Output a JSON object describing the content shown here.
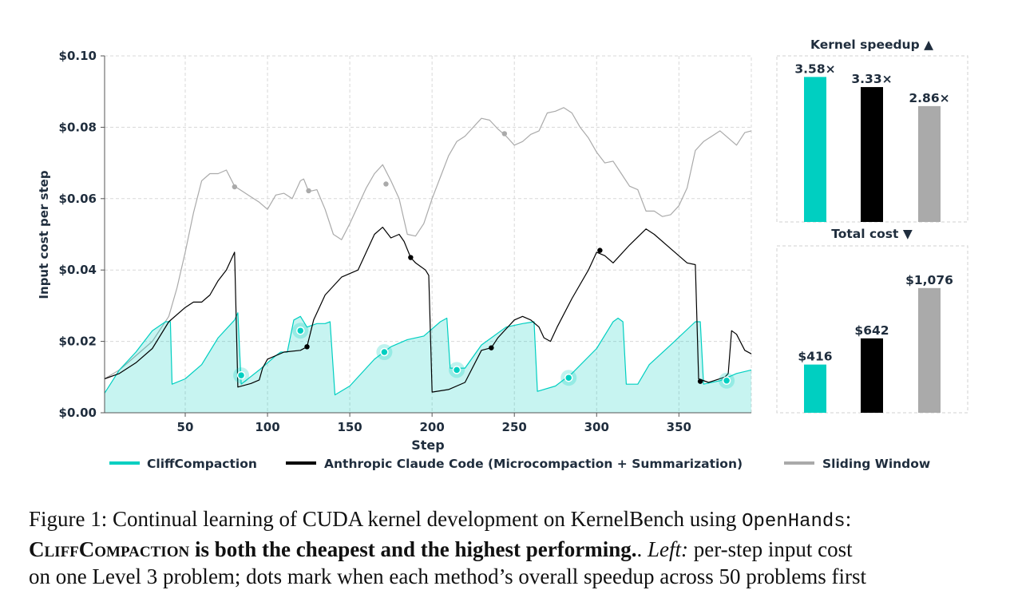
{
  "chart_data": [
    {
      "type": "line",
      "ylabel": "Input cost per step",
      "xlabel": "Step",
      "xlim": [
        1,
        394
      ],
      "ylim": [
        0,
        0.1
      ],
      "x_ticks": [
        50,
        100,
        150,
        200,
        250,
        300,
        350
      ],
      "y_ticks": [
        "$0.00",
        "$0.02",
        "$0.04",
        "$0.06",
        "$0.08",
        "$0.10"
      ],
      "grid": true,
      "legend_position": "bottom",
      "series": [
        {
          "name": "CliffCompaction",
          "color": "#00cfc1",
          "filled": true,
          "points": [
            [
              1,
              0.0055
            ],
            [
              10,
              0.012
            ],
            [
              20,
              0.017
            ],
            [
              30,
              0.023
            ],
            [
              38,
              0.0255
            ],
            [
              41,
              0.0255
            ],
            [
              42,
              0.008
            ],
            [
              50,
              0.0095
            ],
            [
              60,
              0.0135
            ],
            [
              70,
              0.021
            ],
            [
              80,
              0.026
            ],
            [
              82,
              0.028
            ],
            [
              84,
              0.008
            ],
            [
              95,
              0.012
            ],
            [
              105,
              0.016
            ],
            [
              108,
              0.017
            ],
            [
              112,
              0.017
            ],
            [
              116,
              0.026
            ],
            [
              120,
              0.027
            ],
            [
              124,
              0.024
            ],
            [
              130,
              0.025
            ],
            [
              135,
              0.025
            ],
            [
              138,
              0.0255
            ],
            [
              141,
              0.005
            ],
            [
              150,
              0.0075
            ],
            [
              165,
              0.015
            ],
            [
              175,
              0.0185
            ],
            [
              185,
              0.0205
            ],
            [
              195,
              0.0215
            ],
            [
              205,
              0.0255
            ],
            [
              209,
              0.0265
            ],
            [
              211,
              0.0125
            ],
            [
              220,
              0.0125
            ],
            [
              230,
              0.019
            ],
            [
              245,
              0.024
            ],
            [
              255,
              0.025
            ],
            [
              262,
              0.0255
            ],
            [
              264,
              0.006
            ],
            [
              275,
              0.0075
            ],
            [
              285,
              0.011
            ],
            [
              300,
              0.018
            ],
            [
              310,
              0.0255
            ],
            [
              313,
              0.0265
            ],
            [
              316,
              0.0255
            ],
            [
              318,
              0.008
            ],
            [
              325,
              0.008
            ],
            [
              332,
              0.0135
            ],
            [
              345,
              0.019
            ],
            [
              360,
              0.0255
            ],
            [
              363,
              0.0255
            ],
            [
              365,
              0.008
            ],
            [
              375,
              0.009
            ],
            [
              385,
              0.011
            ],
            [
              394,
              0.012
            ]
          ],
          "markers": [
            [
              84,
              0.0105
            ],
            [
              120,
              0.023
            ],
            [
              171,
              0.017
            ],
            [
              215,
              0.012
            ],
            [
              283,
              0.0098
            ],
            [
              379,
              0.009
            ]
          ]
        },
        {
          "name": "Anthropic Claude Code (Microcompaction + Summarization)",
          "color": "#000000",
          "filled": false,
          "points": [
            [
              1,
              0.0095
            ],
            [
              10,
              0.011
            ],
            [
              20,
              0.014
            ],
            [
              30,
              0.018
            ],
            [
              40,
              0.0255
            ],
            [
              50,
              0.0295
            ],
            [
              55,
              0.031
            ],
            [
              60,
              0.031
            ],
            [
              65,
              0.033
            ],
            [
              70,
              0.037
            ],
            [
              75,
              0.04
            ],
            [
              80,
              0.045
            ],
            [
              82,
              0.0072
            ],
            [
              90,
              0.0082
            ],
            [
              95,
              0.0092
            ],
            [
              97,
              0.0125
            ],
            [
              100,
              0.015
            ],
            [
              110,
              0.017
            ],
            [
              120,
              0.0175
            ],
            [
              124,
              0.0185
            ],
            [
              128,
              0.026
            ],
            [
              135,
              0.033
            ],
            [
              145,
              0.038
            ],
            [
              155,
              0.04
            ],
            [
              160,
              0.045
            ],
            [
              165,
              0.05
            ],
            [
              170,
              0.052
            ],
            [
              175,
              0.049
            ],
            [
              180,
              0.05
            ],
            [
              183,
              0.048
            ],
            [
              187,
              0.0435
            ],
            [
              190,
              0.042
            ],
            [
              193,
              0.041
            ],
            [
              196,
              0.04
            ],
            [
              198,
              0.0385
            ],
            [
              200,
              0.0058
            ],
            [
              210,
              0.0065
            ],
            [
              220,
              0.0085
            ],
            [
              230,
              0.0175
            ],
            [
              236,
              0.0182
            ],
            [
              240,
              0.021
            ],
            [
              250,
              0.026
            ],
            [
              255,
              0.027
            ],
            [
              260,
              0.026
            ],
            [
              265,
              0.024
            ],
            [
              268,
              0.021
            ],
            [
              272,
              0.02
            ],
            [
              276,
              0.024
            ],
            [
              285,
              0.032
            ],
            [
              295,
              0.04
            ],
            [
              300,
              0.045
            ],
            [
              305,
              0.044
            ],
            [
              310,
              0.042
            ],
            [
              320,
              0.047
            ],
            [
              330,
              0.0515
            ],
            [
              335,
              0.05
            ],
            [
              345,
              0.046
            ],
            [
              355,
              0.042
            ],
            [
              360,
              0.0415
            ],
            [
              362,
              0.0095
            ],
            [
              368,
              0.0085
            ],
            [
              378,
              0.01
            ],
            [
              380,
              0.011
            ],
            [
              382,
              0.023
            ],
            [
              385,
              0.022
            ],
            [
              390,
              0.0175
            ],
            [
              394,
              0.0165
            ]
          ],
          "markers": [
            [
              124,
              0.0185
            ],
            [
              187,
              0.0435
            ],
            [
              236,
              0.0182
            ],
            [
              302,
              0.0455
            ],
            [
              363,
              0.0088
            ]
          ]
        },
        {
          "name": "Sliding Window",
          "color": "#aaaaaa",
          "filled": false,
          "points": [
            [
              1,
              0.0095
            ],
            [
              10,
              0.012
            ],
            [
              20,
              0.016
            ],
            [
              30,
              0.02
            ],
            [
              40,
              0.027
            ],
            [
              45,
              0.035
            ],
            [
              50,
              0.045
            ],
            [
              55,
              0.056
            ],
            [
              60,
              0.065
            ],
            [
              65,
              0.067
            ],
            [
              70,
              0.067
            ],
            [
              75,
              0.068
            ],
            [
              80,
              0.0635
            ],
            [
              85,
              0.062
            ],
            [
              90,
              0.0605
            ],
            [
              95,
              0.059
            ],
            [
              100,
              0.057
            ],
            [
              105,
              0.061
            ],
            [
              110,
              0.0615
            ],
            [
              115,
              0.06
            ],
            [
              120,
              0.065
            ],
            [
              122,
              0.0655
            ],
            [
              125,
              0.062
            ],
            [
              130,
              0.0625
            ],
            [
              135,
              0.057
            ],
            [
              140,
              0.05
            ],
            [
              145,
              0.0485
            ],
            [
              150,
              0.053
            ],
            [
              155,
              0.058
            ],
            [
              160,
              0.063
            ],
            [
              165,
              0.067
            ],
            [
              170,
              0.0695
            ],
            [
              175,
              0.065
            ],
            [
              180,
              0.06
            ],
            [
              185,
              0.05
            ],
            [
              190,
              0.0495
            ],
            [
              195,
              0.053
            ],
            [
              200,
              0.06
            ],
            [
              205,
              0.066
            ],
            [
              210,
              0.072
            ],
            [
              215,
              0.076
            ],
            [
              220,
              0.0775
            ],
            [
              225,
              0.08
            ],
            [
              230,
              0.0825
            ],
            [
              235,
              0.082
            ],
            [
              240,
              0.0795
            ],
            [
              245,
              0.0775
            ],
            [
              250,
              0.075
            ],
            [
              255,
              0.076
            ],
            [
              260,
              0.078
            ],
            [
              265,
              0.079
            ],
            [
              270,
              0.084
            ],
            [
              275,
              0.0845
            ],
            [
              280,
              0.0855
            ],
            [
              285,
              0.084
            ],
            [
              290,
              0.08
            ],
            [
              295,
              0.077
            ],
            [
              300,
              0.073
            ],
            [
              305,
              0.07
            ],
            [
              310,
              0.0705
            ],
            [
              315,
              0.067
            ],
            [
              320,
              0.0635
            ],
            [
              325,
              0.0625
            ],
            [
              330,
              0.0565
            ],
            [
              335,
              0.0565
            ],
            [
              340,
              0.055
            ],
            [
              345,
              0.0555
            ],
            [
              350,
              0.058
            ],
            [
              355,
              0.063
            ],
            [
              360,
              0.0735
            ],
            [
              365,
              0.076
            ],
            [
              370,
              0.0775
            ],
            [
              375,
              0.079
            ],
            [
              380,
              0.077
            ],
            [
              385,
              0.075
            ],
            [
              390,
              0.0785
            ],
            [
              394,
              0.079
            ]
          ],
          "markers": [
            [
              80,
              0.0633
            ],
            [
              125,
              0.0622
            ],
            [
              172,
              0.0641
            ],
            [
              244,
              0.0782
            ]
          ]
        }
      ]
    },
    {
      "type": "bar",
      "title": "Kernel speedup ▲",
      "values": [
        3.58,
        3.33,
        2.86
      ],
      "value_labels": [
        "3.58×",
        "3.33×",
        "2.86×"
      ],
      "colors": [
        "#00cfc1",
        "#000000",
        "#aaaaaa"
      ],
      "ylim": [
        0,
        4.1
      ]
    },
    {
      "type": "bar",
      "title": "Total cost ▼",
      "values": [
        416,
        642,
        1076
      ],
      "value_labels": [
        "$416",
        "$642",
        "$1,076"
      ],
      "colors": [
        "#00cfc1",
        "#000000",
        "#aaaaaa"
      ],
      "ylim": [
        0,
        1440
      ]
    }
  ],
  "caption": {
    "line1_prefix": "Figure 1: Continual learning of CUDA kernel development on KernelBench using ",
    "line1_code": "OpenHands",
    "line1_suffix": ":",
    "line2_method": "CliffCompaction",
    "line2_bold": " is both the cheapest and the highest performing.",
    "line2_dot": ". ",
    "line2_left": "Left:",
    "line2_rest": " per-step input cost",
    "line3": "on one Level 3 problem; dots mark when each method’s overall speedup across 50 problems first"
  }
}
